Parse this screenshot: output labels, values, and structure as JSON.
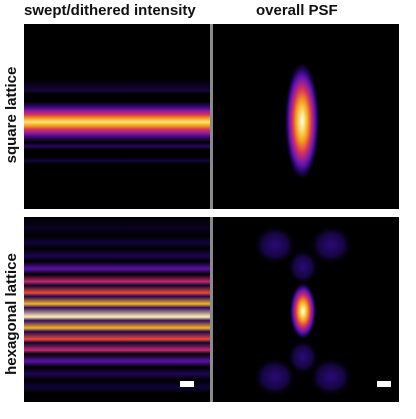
{
  "columns": {
    "left_title": "swept/dithered intensity",
    "right_title": "overall PSF"
  },
  "rows": {
    "top_title": "square lattice",
    "bottom_title": "hexagonal lattice"
  },
  "colormap": [
    "#000000",
    "#1a0033",
    "#3b0a8c",
    "#6a14b5",
    "#a020a0",
    "#d8325a",
    "#f46a1a",
    "#fcae16",
    "#fbe37a",
    "#ffffff"
  ]
}
